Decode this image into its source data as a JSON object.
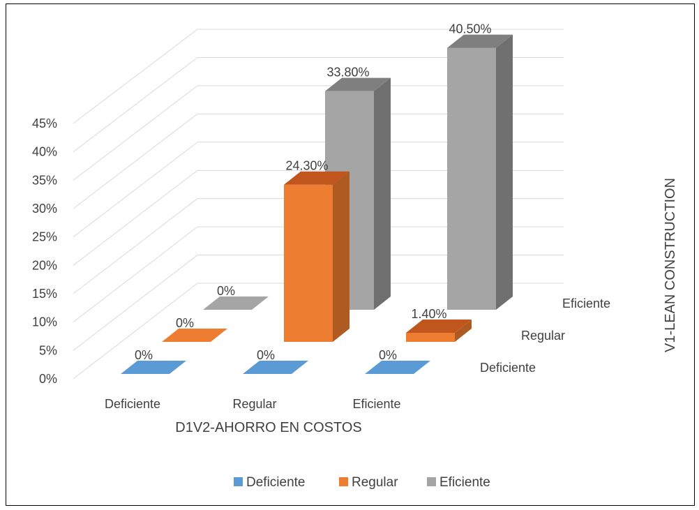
{
  "chart_data": {
    "type": "bar",
    "title": "",
    "xlabel": "D1V2-AHORRO EN COSTOS",
    "zlabel": "V1-LEAN CONSTRUCTION",
    "categories": [
      "Deficiente",
      "Regular",
      "Eficiente"
    ],
    "depth_categories": [
      "Deficiente",
      "Regular",
      "Eficiente"
    ],
    "y_ticks": [
      "0%",
      "5%",
      "10%",
      "15%",
      "20%",
      "25%",
      "30%",
      "35%",
      "40%",
      "45%"
    ],
    "ylim": [
      0,
      45
    ],
    "grid": true,
    "legend_position": "bottom",
    "series": [
      {
        "name": "Deficiente",
        "values": [
          0,
          0,
          0
        ],
        "labels": [
          "0%",
          "0%",
          "0%"
        ],
        "color": "#5b9bd5",
        "top": "#41719c",
        "side": "#41719c"
      },
      {
        "name": "Regular",
        "values": [
          0,
          24.3,
          1.4
        ],
        "labels": [
          "0%",
          "24.30%",
          "1.40%"
        ],
        "color": "#ed7d31",
        "top": "#c0561e",
        "side": "#ae5a21"
      },
      {
        "name": "Eficiente",
        "values": [
          0,
          33.8,
          40.5
        ],
        "labels": [
          "0%",
          "33.80%",
          "40.50%"
        ],
        "color": "#a5a5a5",
        "top": "#7f7f7f",
        "side": "#6f6f6f"
      }
    ]
  }
}
